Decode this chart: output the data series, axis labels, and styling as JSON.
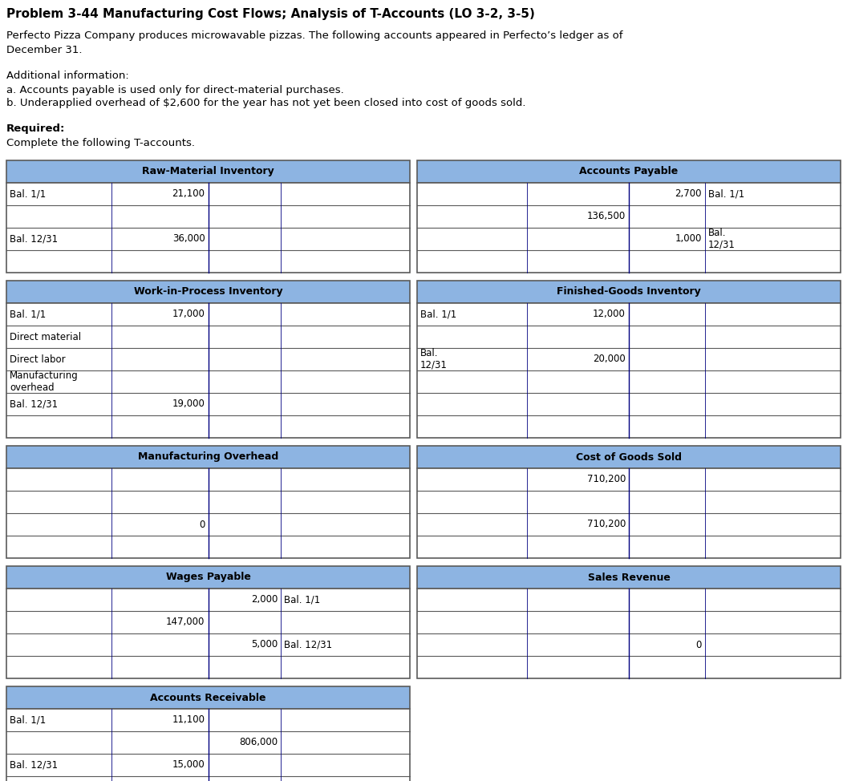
{
  "title": "Problem 3-44 Manufacturing Cost Flows; Analysis of T-Accounts (LO 3-2, 3-5)",
  "para1_line1": "Perfecto Pizza Company produces microwavable pizzas. The following accounts appeared in Perfecto’s ledger as of",
  "para1_line2": "December 31.",
  "para2_line1": "Additional information:",
  "para2_line2": "a. Accounts payable is used only for direct-material purchases.",
  "para2_line3": "b. Underapplied overhead of $2,600 for the year has not yet been closed into cost of goods sold.",
  "para3_line1": "Required:",
  "para3_line2": "Complete the following T-accounts.",
  "header_color": "#8db4e2",
  "grid_color": "#5a5a5a",
  "inner_color": "#000080",
  "bg_color": "#ffffff",
  "t_accounts": [
    {
      "id": 0,
      "title": "Raw-Material Inventory",
      "col": 0,
      "group": 0,
      "cells": [
        [
          {
            "text": "Bal. 1/1",
            "align": "left"
          },
          {
            "text": "21,100",
            "align": "right"
          },
          {
            "text": "",
            "align": "left"
          },
          {
            "text": "",
            "align": "left"
          }
        ],
        [
          {
            "text": "",
            "align": "left"
          },
          {
            "text": "",
            "align": "right"
          },
          {
            "text": "",
            "align": "left"
          },
          {
            "text": "",
            "align": "left"
          }
        ],
        [
          {
            "text": "Bal. 12/31",
            "align": "left"
          },
          {
            "text": "36,000",
            "align": "right"
          },
          {
            "text": "",
            "align": "left"
          },
          {
            "text": "",
            "align": "left"
          }
        ],
        [
          {
            "text": "",
            "align": "left"
          },
          {
            "text": "",
            "align": "right"
          },
          {
            "text": "",
            "align": "left"
          },
          {
            "text": "",
            "align": "left"
          }
        ]
      ]
    },
    {
      "id": 1,
      "title": "Accounts Payable",
      "col": 1,
      "group": 0,
      "cells": [
        [
          {
            "text": "",
            "align": "left"
          },
          {
            "text": "",
            "align": "right"
          },
          {
            "text": "2,700",
            "align": "right"
          },
          {
            "text": "Bal. 1/1",
            "align": "left"
          }
        ],
        [
          {
            "text": "",
            "align": "left"
          },
          {
            "text": "136,500",
            "align": "right"
          },
          {
            "text": "",
            "align": "right"
          },
          {
            "text": "",
            "align": "left"
          }
        ],
        [
          {
            "text": "",
            "align": "left"
          },
          {
            "text": "",
            "align": "right"
          },
          {
            "text": "1,000",
            "align": "right"
          },
          {
            "text": "Bal.\n12/31",
            "align": "left"
          }
        ],
        [
          {
            "text": "",
            "align": "left"
          },
          {
            "text": "",
            "align": "right"
          },
          {
            "text": "",
            "align": "right"
          },
          {
            "text": "",
            "align": "left"
          }
        ]
      ]
    },
    {
      "id": 2,
      "title": "Work-in-Process Inventory",
      "col": 0,
      "group": 1,
      "cells": [
        [
          {
            "text": "Bal. 1/1",
            "align": "left"
          },
          {
            "text": "17,000",
            "align": "right"
          },
          {
            "text": "",
            "align": "left"
          },
          {
            "text": "",
            "align": "left"
          }
        ],
        [
          {
            "text": "Direct material",
            "align": "left"
          },
          {
            "text": "",
            "align": "right"
          },
          {
            "text": "",
            "align": "left"
          },
          {
            "text": "",
            "align": "left"
          }
        ],
        [
          {
            "text": "Direct labor",
            "align": "left"
          },
          {
            "text": "",
            "align": "right"
          },
          {
            "text": "",
            "align": "left"
          },
          {
            "text": "",
            "align": "left"
          }
        ],
        [
          {
            "text": "Manufacturing\noverhead",
            "align": "left"
          },
          {
            "text": "",
            "align": "right"
          },
          {
            "text": "",
            "align": "left"
          },
          {
            "text": "",
            "align": "left"
          }
        ],
        [
          {
            "text": "Bal. 12/31",
            "align": "left"
          },
          {
            "text": "19,000",
            "align": "right"
          },
          {
            "text": "",
            "align": "left"
          },
          {
            "text": "",
            "align": "left"
          }
        ],
        [
          {
            "text": "",
            "align": "left"
          },
          {
            "text": "",
            "align": "right"
          },
          {
            "text": "",
            "align": "left"
          },
          {
            "text": "",
            "align": "left"
          }
        ]
      ]
    },
    {
      "id": 3,
      "title": "Finished-Goods Inventory",
      "col": 1,
      "group": 1,
      "cells": [
        [
          {
            "text": "Bal. 1/1",
            "align": "left"
          },
          {
            "text": "12,000",
            "align": "right"
          },
          {
            "text": "",
            "align": "left"
          },
          {
            "text": "",
            "align": "left"
          }
        ],
        [
          {
            "text": "",
            "align": "left"
          },
          {
            "text": "",
            "align": "right"
          },
          {
            "text": "",
            "align": "left"
          },
          {
            "text": "",
            "align": "left"
          }
        ],
        [
          {
            "text": "Bal.\n12/31",
            "align": "left"
          },
          {
            "text": "20,000",
            "align": "right"
          },
          {
            "text": "",
            "align": "left"
          },
          {
            "text": "",
            "align": "left"
          }
        ],
        [
          {
            "text": "",
            "align": "left"
          },
          {
            "text": "",
            "align": "right"
          },
          {
            "text": "",
            "align": "left"
          },
          {
            "text": "",
            "align": "left"
          }
        ],
        [
          {
            "text": "",
            "align": "left"
          },
          {
            "text": "",
            "align": "right"
          },
          {
            "text": "",
            "align": "left"
          },
          {
            "text": "",
            "align": "left"
          }
        ],
        [
          {
            "text": "",
            "align": "left"
          },
          {
            "text": "",
            "align": "right"
          },
          {
            "text": "",
            "align": "left"
          },
          {
            "text": "",
            "align": "left"
          }
        ]
      ]
    },
    {
      "id": 4,
      "title": "Manufacturing Overhead",
      "col": 0,
      "group": 2,
      "cells": [
        [
          {
            "text": "",
            "align": "left"
          },
          {
            "text": "",
            "align": "right"
          },
          {
            "text": "",
            "align": "left"
          },
          {
            "text": "",
            "align": "left"
          }
        ],
        [
          {
            "text": "",
            "align": "left"
          },
          {
            "text": "",
            "align": "right"
          },
          {
            "text": "",
            "align": "left"
          },
          {
            "text": "",
            "align": "left"
          }
        ],
        [
          {
            "text": "",
            "align": "left"
          },
          {
            "text": "0",
            "align": "right"
          },
          {
            "text": "",
            "align": "left"
          },
          {
            "text": "",
            "align": "left"
          }
        ],
        [
          {
            "text": "",
            "align": "left"
          },
          {
            "text": "",
            "align": "right"
          },
          {
            "text": "",
            "align": "left"
          },
          {
            "text": "",
            "align": "left"
          }
        ]
      ]
    },
    {
      "id": 5,
      "title": "Cost of Goods Sold",
      "col": 1,
      "group": 2,
      "cells": [
        [
          {
            "text": "",
            "align": "left"
          },
          {
            "text": "710,200",
            "align": "right"
          },
          {
            "text": "",
            "align": "left"
          },
          {
            "text": "",
            "align": "left"
          }
        ],
        [
          {
            "text": "",
            "align": "left"
          },
          {
            "text": "",
            "align": "right"
          },
          {
            "text": "",
            "align": "left"
          },
          {
            "text": "",
            "align": "left"
          }
        ],
        [
          {
            "text": "",
            "align": "left"
          },
          {
            "text": "710,200",
            "align": "right"
          },
          {
            "text": "",
            "align": "left"
          },
          {
            "text": "",
            "align": "left"
          }
        ],
        [
          {
            "text": "",
            "align": "left"
          },
          {
            "text": "",
            "align": "right"
          },
          {
            "text": "",
            "align": "left"
          },
          {
            "text": "",
            "align": "left"
          }
        ]
      ]
    },
    {
      "id": 6,
      "title": "Wages Payable",
      "col": 0,
      "group": 3,
      "cells": [
        [
          {
            "text": "",
            "align": "left"
          },
          {
            "text": "",
            "align": "right"
          },
          {
            "text": "2,000",
            "align": "right"
          },
          {
            "text": "Bal. 1/1",
            "align": "left"
          }
        ],
        [
          {
            "text": "",
            "align": "left"
          },
          {
            "text": "147,000",
            "align": "right"
          },
          {
            "text": "",
            "align": "right"
          },
          {
            "text": "",
            "align": "left"
          }
        ],
        [
          {
            "text": "",
            "align": "left"
          },
          {
            "text": "",
            "align": "right"
          },
          {
            "text": "5,000",
            "align": "right"
          },
          {
            "text": "Bal. 12/31",
            "align": "left"
          }
        ],
        [
          {
            "text": "",
            "align": "left"
          },
          {
            "text": "",
            "align": "right"
          },
          {
            "text": "",
            "align": "right"
          },
          {
            "text": "",
            "align": "left"
          }
        ]
      ]
    },
    {
      "id": 7,
      "title": "Sales Revenue",
      "col": 1,
      "group": 3,
      "cells": [
        [
          {
            "text": "",
            "align": "left"
          },
          {
            "text": "",
            "align": "right"
          },
          {
            "text": "",
            "align": "left"
          },
          {
            "text": "",
            "align": "left"
          }
        ],
        [
          {
            "text": "",
            "align": "left"
          },
          {
            "text": "",
            "align": "right"
          },
          {
            "text": "",
            "align": "left"
          },
          {
            "text": "",
            "align": "left"
          }
        ],
        [
          {
            "text": "",
            "align": "left"
          },
          {
            "text": "",
            "align": "right"
          },
          {
            "text": "0",
            "align": "right"
          },
          {
            "text": "",
            "align": "left"
          }
        ],
        [
          {
            "text": "",
            "align": "left"
          },
          {
            "text": "",
            "align": "right"
          },
          {
            "text": "",
            "align": "left"
          },
          {
            "text": "",
            "align": "left"
          }
        ]
      ]
    },
    {
      "id": 8,
      "title": "Accounts Receivable",
      "col": 0,
      "group": 4,
      "cells": [
        [
          {
            "text": "Bal. 1/1",
            "align": "left"
          },
          {
            "text": "11,100",
            "align": "right"
          },
          {
            "text": "",
            "align": "left"
          },
          {
            "text": "",
            "align": "left"
          }
        ],
        [
          {
            "text": "",
            "align": "left"
          },
          {
            "text": "",
            "align": "right"
          },
          {
            "text": "806,000",
            "align": "right"
          },
          {
            "text": "",
            "align": "left"
          }
        ],
        [
          {
            "text": "Bal. 12/31",
            "align": "left"
          },
          {
            "text": "15,000",
            "align": "right"
          },
          {
            "text": "",
            "align": "left"
          },
          {
            "text": "",
            "align": "left"
          }
        ],
        [
          {
            "text": "",
            "align": "left"
          },
          {
            "text": "",
            "align": "right"
          },
          {
            "text": "",
            "align": "left"
          },
          {
            "text": "",
            "align": "left"
          }
        ]
      ]
    }
  ],
  "groups": [
    {
      "nrows": 4
    },
    {
      "nrows": 6
    },
    {
      "nrows": 4
    },
    {
      "nrows": 4
    },
    {
      "nrows": 4
    }
  ]
}
